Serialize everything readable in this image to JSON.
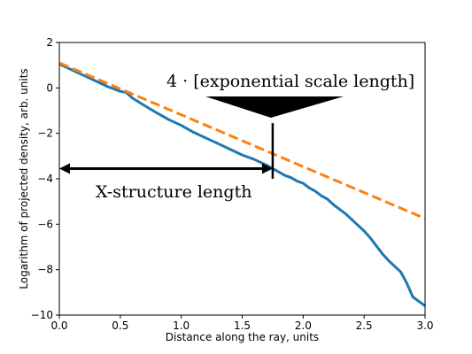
{
  "chart_data": {
    "type": "line",
    "xlabel": "Distance along the ray, units",
    "ylabel": "Logarithm of projected density, arb. units",
    "xlim": [
      0.0,
      3.0
    ],
    "ylim": [
      -10,
      2
    ],
    "x_ticks": [
      "0.0",
      "0.5",
      "1.0",
      "1.5",
      "2.0",
      "2.5",
      "3.0"
    ],
    "y_ticks": [
      "2",
      "0",
      "−2",
      "−4",
      "−6",
      "−8",
      "−10"
    ],
    "grid": false,
    "series": [
      {
        "style": "solid",
        "color": "#1f77b4",
        "x": [
          0.0,
          0.1,
          0.2,
          0.3,
          0.4,
          0.5,
          0.55,
          0.6,
          0.7,
          0.8,
          0.9,
          1.0,
          1.1,
          1.2,
          1.3,
          1.4,
          1.5,
          1.6,
          1.7,
          1.75,
          1.8,
          1.85,
          1.9,
          1.95,
          2.0,
          2.05,
          2.1,
          2.15,
          2.2,
          2.25,
          2.3,
          2.35,
          2.4,
          2.45,
          2.5,
          2.55,
          2.6,
          2.65,
          2.7,
          2.75,
          2.8,
          2.85,
          2.9,
          2.95,
          3.0
        ],
        "y": [
          1.05,
          0.8,
          0.55,
          0.3,
          0.05,
          -0.15,
          -0.2,
          -0.45,
          -0.78,
          -1.1,
          -1.4,
          -1.65,
          -1.95,
          -2.2,
          -2.45,
          -2.7,
          -2.95,
          -3.15,
          -3.4,
          -3.55,
          -3.7,
          -3.85,
          -3.95,
          -4.1,
          -4.2,
          -4.4,
          -4.55,
          -4.75,
          -4.9,
          -5.15,
          -5.35,
          -5.55,
          -5.8,
          -6.05,
          -6.3,
          -6.6,
          -6.95,
          -7.3,
          -7.6,
          -7.85,
          -8.1,
          -8.6,
          -9.2,
          -9.4,
          -9.6
        ]
      },
      {
        "style": "dashed",
        "color": "#ff7f0e",
        "x": [
          0.0,
          3.0
        ],
        "y": [
          1.1,
          -5.75
        ]
      }
    ],
    "annotations": {
      "scale_text": "4 · [exponential scale length]",
      "scale_marker_x": 1.75,
      "scale_marker_y_top": -1.55,
      "scale_marker_y_bottom": -4.0,
      "length_text": "X-structure length",
      "length_arrow_y": -3.55,
      "length_arrow_x": [
        0.0,
        1.75
      ]
    }
  }
}
